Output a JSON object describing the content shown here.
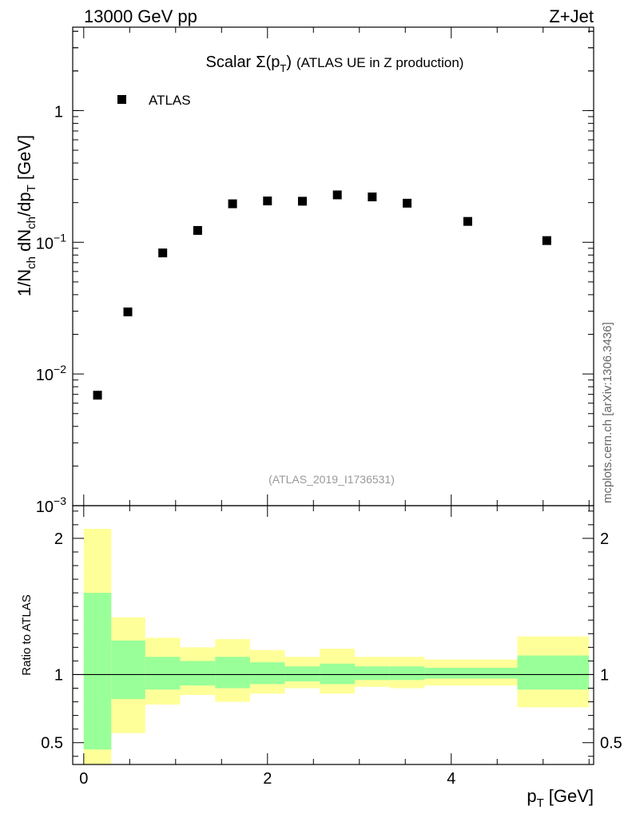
{
  "header": {
    "energy_label": "13000 GeV pp",
    "process_label": "Z+Jet"
  },
  "side_label": "mcplots.cern.ch [arXiv:1306.3436]",
  "chart_data": [
    {
      "type": "scatter",
      "title": "Scalar Σ(p_T) (ATLAS UE in Z production)",
      "title_main": "Scalar",
      "title_sigma": "Σ(p",
      "title_sub": "T",
      "title_close": ")",
      "title_rest": "(ATLAS UE in Z production)",
      "ylabel": "1/N_ch dN_ch/dp_T [GeV]",
      "ylabel_parts": {
        "a": "1/N",
        "b": "ch",
        "c": " dN",
        "d": "ch",
        "e": "/dp",
        "f": "T",
        "g": " [GeV]"
      },
      "yscale": "log",
      "ylim": [
        0.001,
        4.3
      ],
      "xlim": [
        -0.12,
        5.55
      ],
      "ytick_labels": [
        {
          "value": 1,
          "base": "1",
          "exp": ""
        },
        {
          "value": 0.1,
          "base": "10",
          "exp": "−1"
        },
        {
          "value": 0.01,
          "base": "10",
          "exp": "−2"
        },
        {
          "value": 0.001,
          "base": "10",
          "exp": "−3"
        }
      ],
      "watermark": "(ATLAS_2019_I1736531)",
      "legend": {
        "position": "top-left",
        "entries": [
          "ATLAS"
        ]
      },
      "series": [
        {
          "name": "ATLAS",
          "marker": "square",
          "x": [
            0.15,
            0.48,
            0.86,
            1.24,
            1.62,
            2.0,
            2.38,
            2.76,
            3.14,
            3.52,
            4.18,
            5.04
          ],
          "y": [
            0.0069,
            0.0296,
            0.083,
            0.123,
            0.196,
            0.206,
            0.205,
            0.229,
            0.221,
            0.198,
            0.144,
            0.103
          ]
        }
      ]
    },
    {
      "type": "area",
      "ylabel": "Ratio to ATLAS",
      "xlabel": "p_T [GeV]",
      "xlabel_main": "p",
      "xlabel_sub": "T",
      "xlabel_unit": "[GeV]",
      "ylim": [
        0.34,
        2.24
      ],
      "xlim": [
        -0.12,
        5.55
      ],
      "xtick_labels": [
        {
          "value": 0,
          "label": "0"
        },
        {
          "value": 2,
          "label": "2"
        },
        {
          "value": 4,
          "label": "4"
        }
      ],
      "ytick_labels": [
        {
          "value": 2,
          "label": "2"
        },
        {
          "value": 1,
          "label": "1"
        },
        {
          "value": 0.5,
          "label": "0.5"
        }
      ],
      "reference_line": 1,
      "colors": {
        "inner": "#99ff99",
        "outer": "#ffff99"
      },
      "bands": [
        {
          "x0": 0.0,
          "x1": 0.3,
          "inner": [
            0.45,
            1.6
          ],
          "outer": [
            0.34,
            2.07
          ]
        },
        {
          "x0": 0.3,
          "x1": 0.67,
          "inner": [
            0.82,
            1.25
          ],
          "outer": [
            0.57,
            1.42
          ]
        },
        {
          "x0": 0.67,
          "x1": 1.05,
          "inner": [
            0.89,
            1.13
          ],
          "outer": [
            0.78,
            1.27
          ]
        },
        {
          "x0": 1.05,
          "x1": 1.43,
          "inner": [
            0.92,
            1.1
          ],
          "outer": [
            0.85,
            1.2
          ]
        },
        {
          "x0": 1.43,
          "x1": 1.81,
          "inner": [
            0.9,
            1.13
          ],
          "outer": [
            0.8,
            1.26
          ]
        },
        {
          "x0": 1.81,
          "x1": 2.19,
          "inner": [
            0.93,
            1.09
          ],
          "outer": [
            0.86,
            1.18
          ]
        },
        {
          "x0": 2.19,
          "x1": 2.57,
          "inner": [
            0.95,
            1.06
          ],
          "outer": [
            0.9,
            1.13
          ]
        },
        {
          "x0": 2.57,
          "x1": 2.95,
          "inner": [
            0.93,
            1.08
          ],
          "outer": [
            0.86,
            1.19
          ]
        },
        {
          "x0": 2.95,
          "x1": 3.33,
          "inner": [
            0.96,
            1.06
          ],
          "outer": [
            0.91,
            1.13
          ]
        },
        {
          "x0": 3.33,
          "x1": 3.71,
          "inner": [
            0.96,
            1.06
          ],
          "outer": [
            0.9,
            1.13
          ]
        },
        {
          "x0": 3.71,
          "x1": 4.72,
          "inner": [
            0.97,
            1.05
          ],
          "outer": [
            0.92,
            1.11
          ]
        },
        {
          "x0": 4.72,
          "x1": 5.5,
          "inner": [
            0.89,
            1.14
          ],
          "outer": [
            0.76,
            1.28
          ]
        }
      ]
    }
  ]
}
